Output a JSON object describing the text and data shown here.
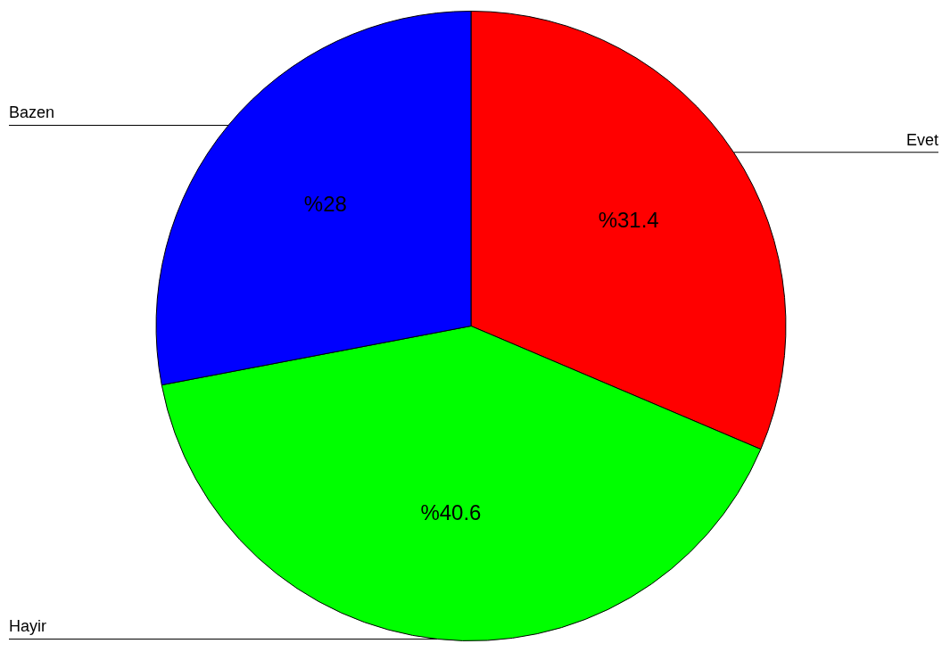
{
  "chart_data": {
    "type": "pie",
    "categories": [
      "Evet",
      "Hayir",
      "Bazen"
    ],
    "values": [
      31.4,
      40.6,
      28
    ],
    "colors": [
      "#ff0000",
      "#00ff00",
      "#0000ff"
    ],
    "value_labels": [
      "%31.4",
      "%40.6",
      "%28"
    ],
    "legend": false
  }
}
